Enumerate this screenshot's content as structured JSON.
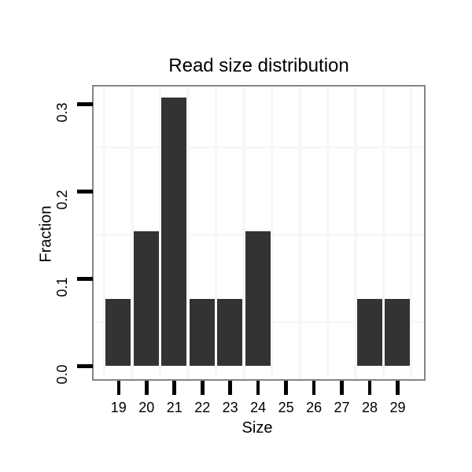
{
  "chart_data": {
    "type": "bar",
    "title": "Read size distribution",
    "xlabel": "Size",
    "ylabel": "Fraction",
    "categories": [
      19,
      20,
      21,
      22,
      23,
      24,
      25,
      26,
      27,
      28,
      29
    ],
    "values": [
      0.0769,
      0.1538,
      0.3077,
      0.0769,
      0.0769,
      0.1538,
      0,
      0,
      0,
      0.0769,
      0.0769
    ],
    "ytick_labels": [
      "0.0",
      "0.1",
      "0.2",
      "0.3"
    ],
    "ytick_values": [
      0.0,
      0.1,
      0.2,
      0.3
    ],
    "ylim": [
      -0.016,
      0.323
    ],
    "minor_grid_y": [
      0.05,
      0.15,
      0.25
    ],
    "grid": "minor gridlines only, between categories and midway between y ticks",
    "legend_position": "none"
  },
  "colors": {
    "bar_fill": "#333333",
    "panel_border": "#848484",
    "gridline": "#f7f7f7",
    "tick": "#000000",
    "text": "#000000",
    "background": "#ffffff"
  }
}
